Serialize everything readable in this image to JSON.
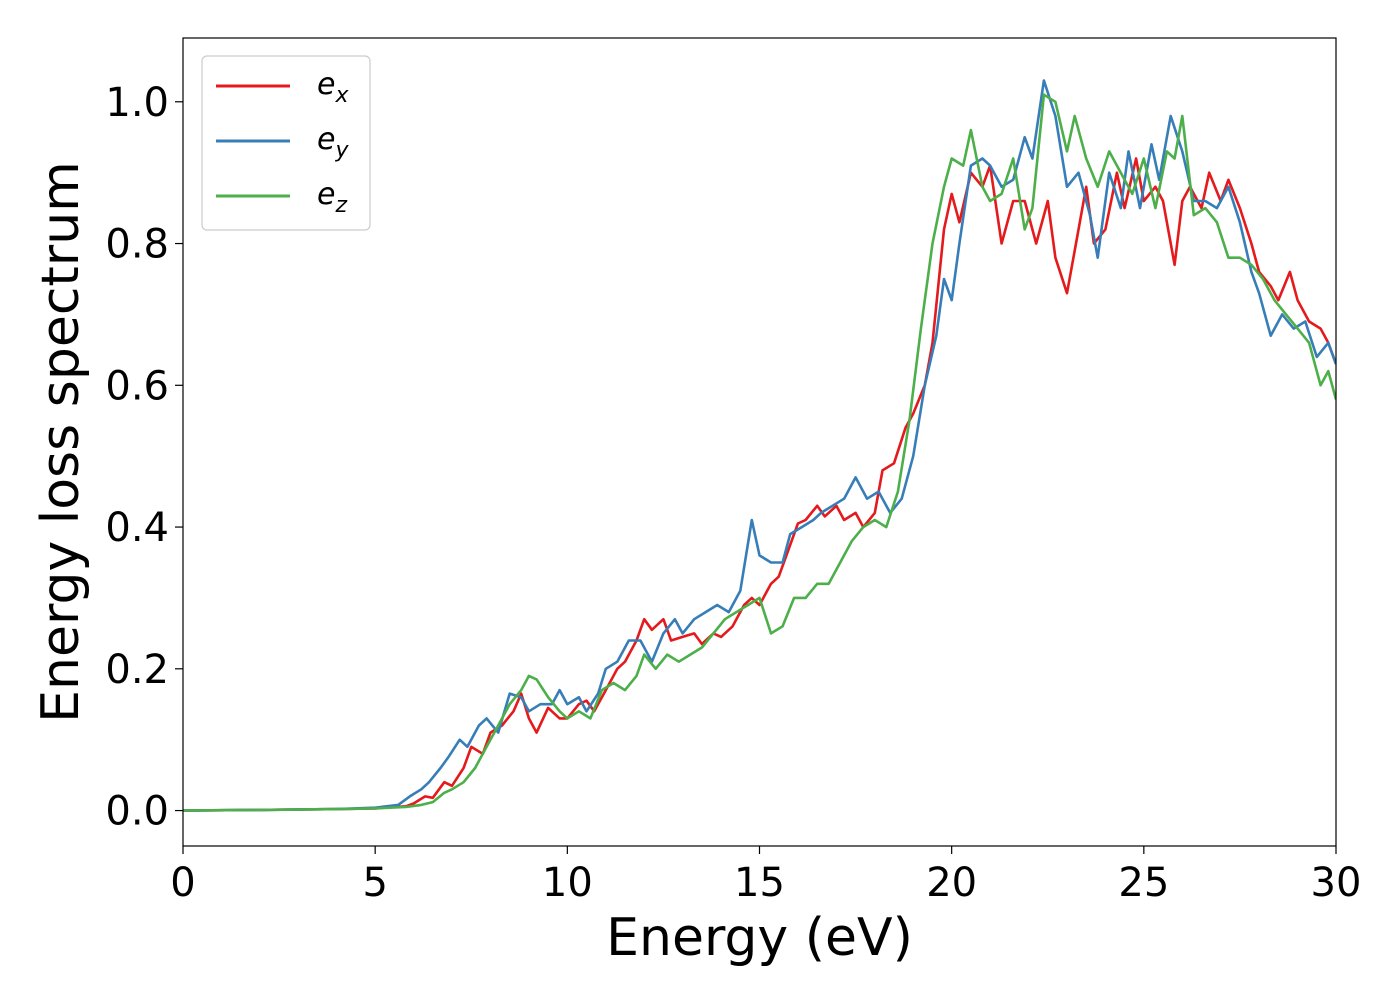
{
  "chart_data": {
    "type": "line",
    "xlabel": "Energy (eV)",
    "ylabel": "Energy loss spectrum",
    "xlim": [
      0,
      30
    ],
    "ylim": [
      -0.05,
      1.09
    ],
    "xticks": [
      0,
      5,
      10,
      15,
      20,
      25,
      30
    ],
    "yticks": [
      0.0,
      0.2,
      0.4,
      0.6,
      0.8,
      1.0
    ],
    "xtick_labels": [
      "0",
      "5",
      "10",
      "15",
      "20",
      "25",
      "30"
    ],
    "ytick_labels": [
      "0.0",
      "0.2",
      "0.4",
      "0.6",
      "0.8",
      "1.0"
    ],
    "grid": false,
    "legend_position": "top-left",
    "series": [
      {
        "name": "e_x",
        "legend_symbol": "e",
        "legend_subscript": "x",
        "color": "#e41a1c",
        "x": [
          0,
          2,
          4,
          5,
          5.8,
          6.0,
          6.3,
          6.5,
          6.8,
          7.0,
          7.3,
          7.5,
          7.8,
          8.0,
          8.3,
          8.6,
          8.8,
          9.0,
          9.2,
          9.5,
          9.8,
          10.0,
          10.3,
          10.5,
          10.7,
          11.0,
          11.3,
          11.5,
          11.8,
          12.0,
          12.2,
          12.5,
          12.7,
          13.0,
          13.3,
          13.5,
          13.8,
          14.0,
          14.3,
          14.6,
          14.8,
          15.0,
          15.3,
          15.5,
          15.7,
          16.0,
          16.2,
          16.5,
          16.7,
          17.0,
          17.2,
          17.5,
          17.7,
          18.0,
          18.2,
          18.5,
          18.8,
          19.0,
          19.3,
          19.5,
          19.8,
          20.0,
          20.2,
          20.5,
          20.8,
          21.0,
          21.3,
          21.6,
          21.9,
          22.2,
          22.5,
          22.7,
          23.0,
          23.2,
          23.5,
          23.7,
          24.0,
          24.3,
          24.5,
          24.8,
          25.0,
          25.3,
          25.5,
          25.8,
          26.0,
          26.2,
          26.5,
          26.7,
          27.0,
          27.2,
          27.5,
          27.8,
          28.0,
          28.3,
          28.5,
          28.8,
          29.0,
          29.3,
          29.6,
          29.8,
          30.0
        ],
        "y": [
          0,
          0.001,
          0.002,
          0.003,
          0.006,
          0.01,
          0.02,
          0.018,
          0.04,
          0.035,
          0.06,
          0.09,
          0.08,
          0.11,
          0.12,
          0.14,
          0.165,
          0.13,
          0.11,
          0.145,
          0.13,
          0.13,
          0.15,
          0.155,
          0.14,
          0.17,
          0.2,
          0.21,
          0.24,
          0.27,
          0.255,
          0.27,
          0.24,
          0.245,
          0.25,
          0.235,
          0.25,
          0.245,
          0.26,
          0.29,
          0.3,
          0.29,
          0.32,
          0.33,
          0.36,
          0.405,
          0.41,
          0.43,
          0.415,
          0.43,
          0.41,
          0.42,
          0.4,
          0.42,
          0.48,
          0.49,
          0.54,
          0.56,
          0.6,
          0.66,
          0.82,
          0.87,
          0.83,
          0.9,
          0.88,
          0.91,
          0.8,
          0.86,
          0.86,
          0.8,
          0.86,
          0.78,
          0.73,
          0.79,
          0.88,
          0.8,
          0.82,
          0.9,
          0.85,
          0.92,
          0.86,
          0.88,
          0.86,
          0.77,
          0.86,
          0.88,
          0.85,
          0.9,
          0.86,
          0.89,
          0.85,
          0.8,
          0.76,
          0.74,
          0.72,
          0.76,
          0.72,
          0.69,
          0.68,
          0.66,
          0.63
        ]
      },
      {
        "name": "e_y",
        "legend_symbol": "e",
        "legend_subscript": "y",
        "color": "#377eb8",
        "x": [
          0,
          2,
          4,
          5,
          5.6,
          5.9,
          6.2,
          6.4,
          6.7,
          6.9,
          7.2,
          7.4,
          7.7,
          7.9,
          8.2,
          8.5,
          8.8,
          9.0,
          9.3,
          9.6,
          9.8,
          10.0,
          10.3,
          10.5,
          10.8,
          11.0,
          11.3,
          11.6,
          11.9,
          12.2,
          12.5,
          12.8,
          13.0,
          13.3,
          13.6,
          13.9,
          14.2,
          14.5,
          14.8,
          15.0,
          15.3,
          15.6,
          15.8,
          16.1,
          16.4,
          16.6,
          16.9,
          17.2,
          17.5,
          17.8,
          18.1,
          18.4,
          18.7,
          19.0,
          19.3,
          19.6,
          19.8,
          20.0,
          20.2,
          20.5,
          20.8,
          21.0,
          21.3,
          21.6,
          21.9,
          22.1,
          22.4,
          22.7,
          23.0,
          23.3,
          23.6,
          23.8,
          24.1,
          24.4,
          24.6,
          24.9,
          25.2,
          25.4,
          25.7,
          26.0,
          26.3,
          26.6,
          26.9,
          27.2,
          27.5,
          27.8,
          28.0,
          28.3,
          28.6,
          28.9,
          29.2,
          29.5,
          29.8,
          30.0
        ],
        "y": [
          0,
          0.001,
          0.002,
          0.004,
          0.008,
          0.02,
          0.03,
          0.04,
          0.06,
          0.075,
          0.1,
          0.09,
          0.12,
          0.13,
          0.11,
          0.165,
          0.16,
          0.14,
          0.15,
          0.15,
          0.17,
          0.15,
          0.16,
          0.14,
          0.165,
          0.2,
          0.21,
          0.24,
          0.24,
          0.21,
          0.25,
          0.27,
          0.25,
          0.27,
          0.28,
          0.29,
          0.28,
          0.31,
          0.41,
          0.36,
          0.35,
          0.35,
          0.39,
          0.4,
          0.41,
          0.42,
          0.43,
          0.44,
          0.47,
          0.44,
          0.45,
          0.42,
          0.44,
          0.5,
          0.6,
          0.67,
          0.75,
          0.72,
          0.8,
          0.91,
          0.92,
          0.91,
          0.88,
          0.89,
          0.95,
          0.92,
          1.03,
          0.98,
          0.88,
          0.9,
          0.84,
          0.78,
          0.9,
          0.85,
          0.93,
          0.85,
          0.94,
          0.89,
          0.98,
          0.93,
          0.86,
          0.86,
          0.85,
          0.88,
          0.83,
          0.76,
          0.73,
          0.67,
          0.7,
          0.68,
          0.69,
          0.64,
          0.66,
          0.63
        ]
      },
      {
        "name": "e_z",
        "legend_symbol": "e",
        "legend_subscript": "z",
        "color": "#4daf4a",
        "x": [
          0,
          2,
          4,
          5,
          5.8,
          6.2,
          6.5,
          6.8,
          7.0,
          7.3,
          7.6,
          7.9,
          8.2,
          8.5,
          8.8,
          9.0,
          9.2,
          9.5,
          9.8,
          10.0,
          10.3,
          10.6,
          10.9,
          11.2,
          11.5,
          11.8,
          12.0,
          12.3,
          12.6,
          12.9,
          13.2,
          13.5,
          13.8,
          14.1,
          14.4,
          14.7,
          15.0,
          15.3,
          15.6,
          15.9,
          16.2,
          16.5,
          16.8,
          17.1,
          17.4,
          17.7,
          18.0,
          18.3,
          18.6,
          18.9,
          19.2,
          19.5,
          19.8,
          20.0,
          20.3,
          20.5,
          20.8,
          21.0,
          21.3,
          21.6,
          21.9,
          22.1,
          22.4,
          22.7,
          23.0,
          23.2,
          23.5,
          23.8,
          24.1,
          24.4,
          24.7,
          25.0,
          25.3,
          25.6,
          25.8,
          26.0,
          26.3,
          26.6,
          26.9,
          27.2,
          27.5,
          27.8,
          28.1,
          28.4,
          28.7,
          29.0,
          29.3,
          29.6,
          29.8,
          30.0
        ],
        "y": [
          0,
          0.001,
          0.002,
          0.003,
          0.005,
          0.008,
          0.012,
          0.025,
          0.03,
          0.04,
          0.06,
          0.09,
          0.12,
          0.15,
          0.17,
          0.19,
          0.185,
          0.16,
          0.14,
          0.13,
          0.14,
          0.13,
          0.17,
          0.18,
          0.17,
          0.19,
          0.22,
          0.2,
          0.22,
          0.21,
          0.22,
          0.23,
          0.25,
          0.27,
          0.28,
          0.29,
          0.3,
          0.25,
          0.26,
          0.3,
          0.3,
          0.32,
          0.32,
          0.35,
          0.38,
          0.4,
          0.41,
          0.4,
          0.45,
          0.55,
          0.68,
          0.8,
          0.88,
          0.92,
          0.91,
          0.96,
          0.88,
          0.86,
          0.87,
          0.92,
          0.82,
          0.85,
          1.01,
          1.0,
          0.93,
          0.98,
          0.92,
          0.88,
          0.93,
          0.9,
          0.87,
          0.92,
          0.85,
          0.93,
          0.92,
          0.98,
          0.84,
          0.85,
          0.83,
          0.78,
          0.78,
          0.77,
          0.75,
          0.72,
          0.7,
          0.68,
          0.66,
          0.6,
          0.62,
          0.58
        ]
      }
    ]
  }
}
